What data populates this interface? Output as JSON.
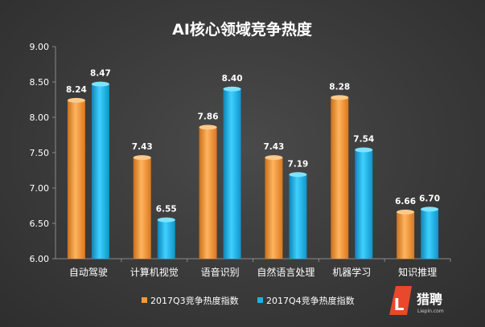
{
  "chart_data": {
    "type": "bar",
    "title": "AI核心领域竞争热度",
    "categories": [
      "自动驾驶",
      "计算机视觉",
      "语音识别",
      "自然语言处理",
      "机器学习",
      "知识推理"
    ],
    "series": [
      {
        "name": "2017Q3竞争热度指数",
        "values": [
          8.24,
          7.43,
          7.86,
          7.43,
          8.28,
          6.66
        ],
        "color": "#f29a3a"
      },
      {
        "name": "2017Q4竞争热度指数",
        "values": [
          8.47,
          6.55,
          8.4,
          7.19,
          7.54,
          6.7
        ],
        "color": "#17b4e6"
      }
    ],
    "ylim": [
      6.0,
      9.0
    ],
    "yticks": [
      "6.00",
      "6.50",
      "7.00",
      "7.50",
      "8.00",
      "8.50",
      "9.00"
    ],
    "grid": false,
    "legend": "bottom"
  },
  "logo": {
    "text": "猎聘",
    "subtext": "Liepin.com",
    "color": "#e8482c"
  }
}
